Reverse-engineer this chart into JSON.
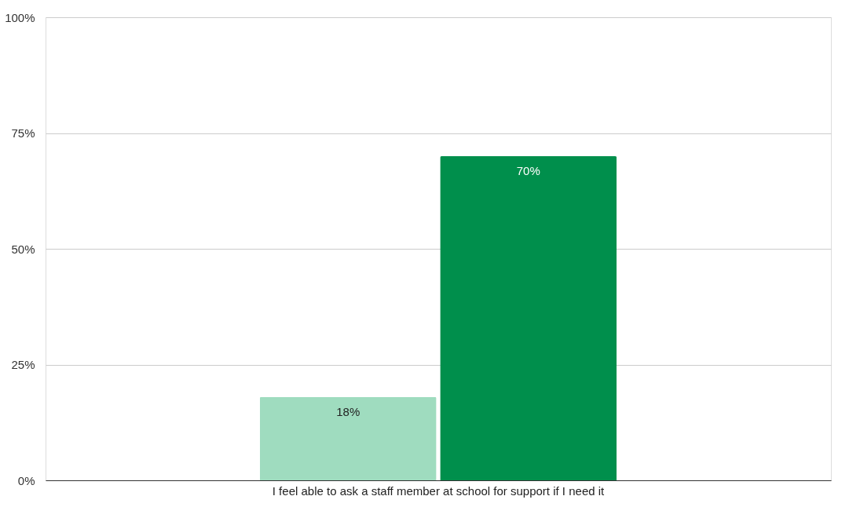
{
  "chart_data": {
    "type": "bar",
    "categories": [
      "I feel able to ask a staff member at school for support if I need it"
    ],
    "series": [
      {
        "color": "#9fdcbf",
        "values": [
          18
        ],
        "value_labels": [
          "18%"
        ]
      },
      {
        "color": "#008f4c",
        "values": [
          70
        ],
        "value_labels": [
          "70%"
        ]
      }
    ],
    "ylim": [
      0,
      100
    ],
    "yticks": [
      {
        "value": 0,
        "label": "0%"
      },
      {
        "value": 25,
        "label": "25%"
      },
      {
        "value": 50,
        "label": "50%"
      },
      {
        "value": 75,
        "label": "75%"
      },
      {
        "value": 100,
        "label": "100%"
      }
    ],
    "grid": "y",
    "legend": false
  }
}
